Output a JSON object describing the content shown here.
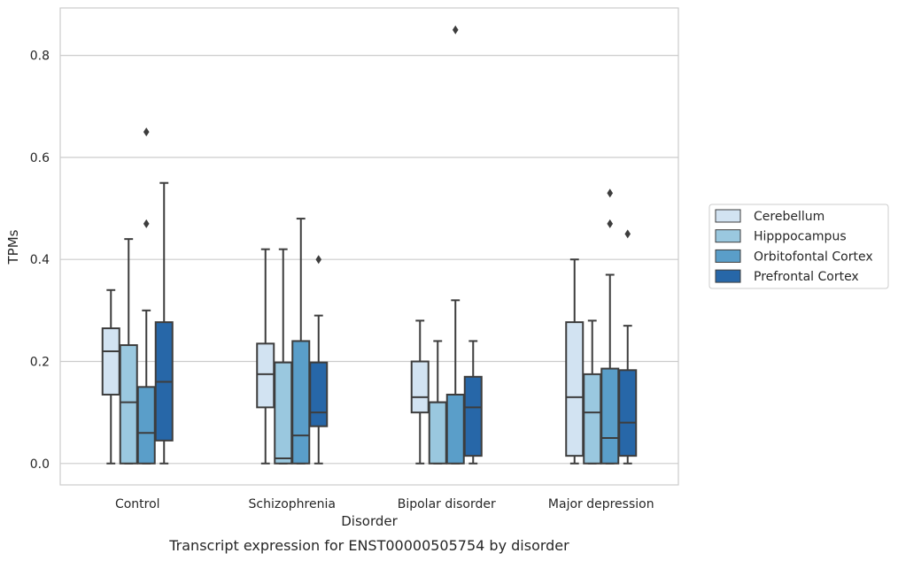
{
  "chart_data": {
    "type": "box",
    "caption": "Transcript expression for ENST00000505754 by disorder",
    "xlabel": "Disorder",
    "ylabel": "TPMs",
    "ylim": [
      -0.042,
      0.893
    ],
    "yticks": [
      0.0,
      0.2,
      0.4,
      0.6,
      0.8
    ],
    "ytick_labels": [
      "0.0",
      "0.2",
      "0.4",
      "0.6",
      "0.8"
    ],
    "grid": "horizontal",
    "legend_position": "right",
    "categories": [
      "Control",
      "Schizophrenia",
      "Bipolar disorder",
      "Major depression"
    ],
    "series": [
      {
        "name": "Cerebellum",
        "color": "#d2e3f2",
        "boxes": [
          {
            "whislo": 0.0,
            "q1": 0.135,
            "med": 0.22,
            "q3": 0.265,
            "whishi": 0.34,
            "fliers": []
          },
          {
            "whislo": 0.0,
            "q1": 0.11,
            "med": 0.175,
            "q3": 0.235,
            "whishi": 0.42,
            "fliers": []
          },
          {
            "whislo": 0.0,
            "q1": 0.1,
            "med": 0.13,
            "q3": 0.2,
            "whishi": 0.28,
            "fliers": []
          },
          {
            "whislo": 0.0,
            "q1": 0.015,
            "med": 0.13,
            "q3": 0.277,
            "whishi": 0.4,
            "fliers": []
          }
        ]
      },
      {
        "name": "Hipppocampus",
        "color": "#9ac8df",
        "boxes": [
          {
            "whislo": 0.0,
            "q1": 0.0,
            "med": 0.12,
            "q3": 0.232,
            "whishi": 0.44,
            "fliers": []
          },
          {
            "whislo": 0.0,
            "q1": 0.0,
            "med": 0.01,
            "q3": 0.198,
            "whishi": 0.42,
            "fliers": []
          },
          {
            "whislo": 0.0,
            "q1": 0.0,
            "med": 0.12,
            "q3": 0.12,
            "whishi": 0.24,
            "fliers": []
          },
          {
            "whislo": 0.0,
            "q1": 0.0,
            "med": 0.1,
            "q3": 0.175,
            "whishi": 0.28,
            "fliers": []
          }
        ]
      },
      {
        "name": "Orbitofontal Cortex",
        "color": "#5a9ec9",
        "boxes": [
          {
            "whislo": 0.0,
            "q1": 0.0,
            "med": 0.06,
            "q3": 0.15,
            "whishi": 0.3,
            "fliers": [
              0.47,
              0.65
            ]
          },
          {
            "whislo": 0.0,
            "q1": 0.0,
            "med": 0.055,
            "q3": 0.24,
            "whishi": 0.48,
            "fliers": []
          },
          {
            "whislo": 0.0,
            "q1": 0.0,
            "med": 0.135,
            "q3": 0.135,
            "whishi": 0.32,
            "fliers": [
              0.85
            ]
          },
          {
            "whislo": 0.0,
            "q1": 0.0,
            "med": 0.05,
            "q3": 0.186,
            "whishi": 0.37,
            "fliers": [
              0.47,
              0.53
            ]
          }
        ]
      },
      {
        "name": "Prefrontal Cortex",
        "color": "#2767a8",
        "boxes": [
          {
            "whislo": 0.0,
            "q1": 0.045,
            "med": 0.16,
            "q3": 0.277,
            "whishi": 0.55,
            "fliers": []
          },
          {
            "whislo": 0.0,
            "q1": 0.073,
            "med": 0.1,
            "q3": 0.198,
            "whishi": 0.29,
            "fliers": [
              0.4
            ]
          },
          {
            "whislo": 0.0,
            "q1": 0.015,
            "med": 0.11,
            "q3": 0.17,
            "whishi": 0.24,
            "fliers": []
          },
          {
            "whislo": 0.0,
            "q1": 0.015,
            "med": 0.08,
            "q3": 0.183,
            "whishi": 0.27,
            "fliers": [
              0.45
            ]
          }
        ]
      }
    ]
  }
}
